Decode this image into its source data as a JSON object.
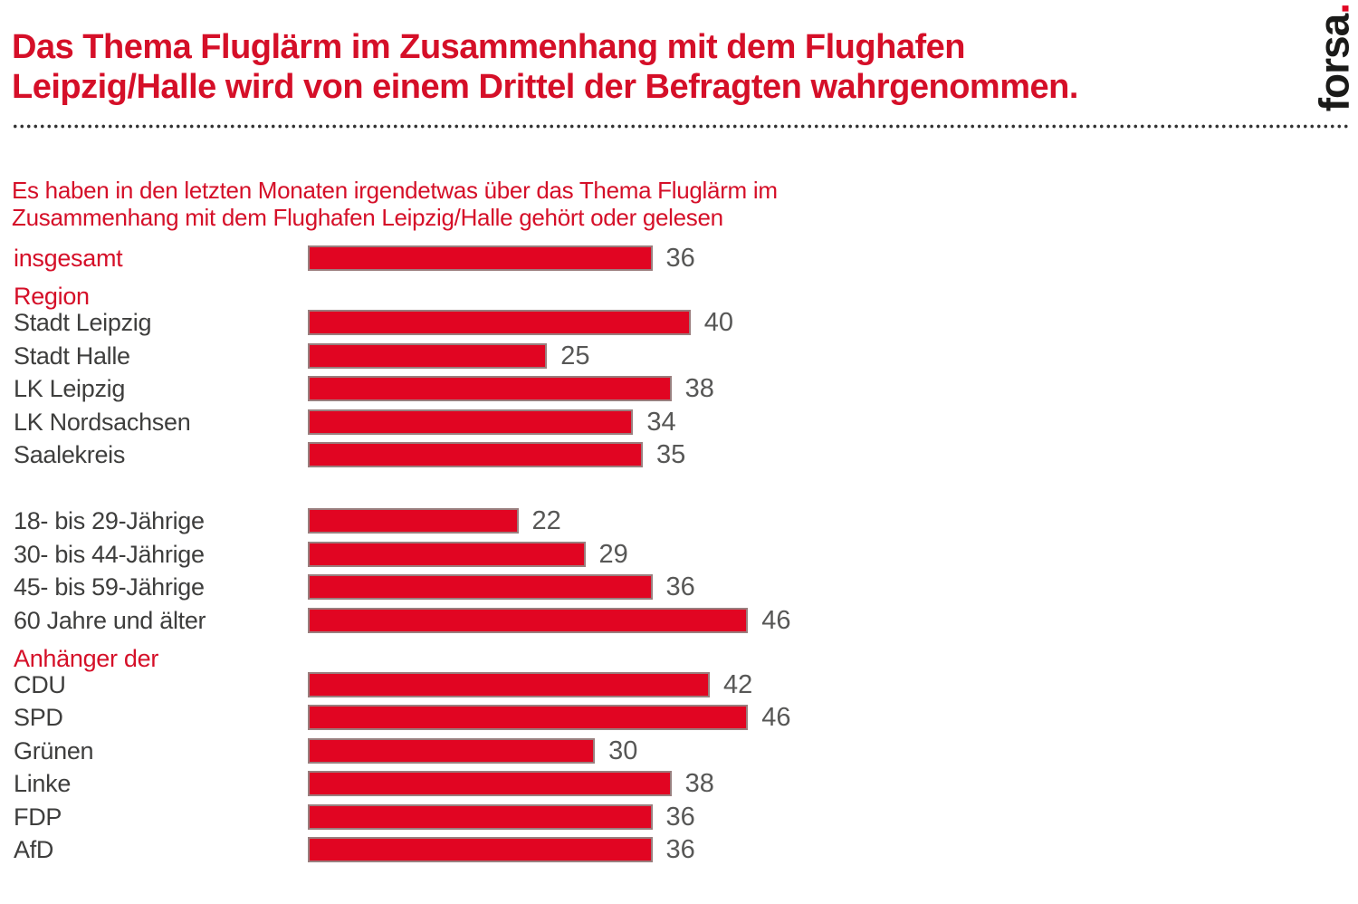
{
  "header": {
    "title_line1": "Das Thema Fluglärm im Zusammenhang mit dem Flughafen",
    "title_line2": "Leipzig/Halle wird von einem Drittel der Befragten wahrgenommen.",
    "logo_text": "forsa",
    "logo_dot": "."
  },
  "subtitle": {
    "line1": "Es haben in den letzten Monaten irgendetwas über das Thema Fluglärm im",
    "line2": "Zusammenhang mit dem Flughafen Leipzig/Halle gehört oder gelesen"
  },
  "colors": {
    "bar_red": "#e10522",
    "text_red": "#d50f28",
    "label_gray": "#3e3e3d",
    "value_gray": "#575756",
    "logo_black": "#1a1a18",
    "logo_dot_red": "#e10522"
  },
  "chart_data": {
    "type": "bar",
    "orientation": "horizontal",
    "value_unit": "percent",
    "xlim": [
      0,
      50
    ],
    "grid": false,
    "legend": false,
    "title": "Es haben in den letzten Monaten irgendetwas über das Thema Fluglärm im Zusammenhang mit dem Flughafen Leipzig/Halle gehört oder gelesen",
    "groups": [
      {
        "header": null,
        "rows": [
          {
            "label": "insgesamt",
            "value": 36,
            "emphasis": true
          }
        ]
      },
      {
        "header": "Region",
        "rows": [
          {
            "label": "Stadt Leipzig",
            "value": 40
          },
          {
            "label": "Stadt Halle",
            "value": 25
          },
          {
            "label": "LK Leipzig",
            "value": 38
          },
          {
            "label": "LK Nordsachsen",
            "value": 34
          },
          {
            "label": "Saalekreis",
            "value": 35
          }
        ]
      },
      {
        "header": "",
        "rows": [
          {
            "label": "18- bis 29-Jährige",
            "value": 22
          },
          {
            "label": "30- bis 44-Jährige",
            "value": 29
          },
          {
            "label": "45- bis 59-Jährige",
            "value": 36
          },
          {
            "label": "60 Jahre und älter",
            "value": 46
          }
        ]
      },
      {
        "header": "Anhänger der",
        "rows": [
          {
            "label": "CDU",
            "value": 42
          },
          {
            "label": "SPD",
            "value": 46
          },
          {
            "label": "Grünen",
            "value": 30
          },
          {
            "label": "Linke",
            "value": 38
          },
          {
            "label": "FDP",
            "value": 36
          },
          {
            "label": "AfD",
            "value": 36
          }
        ]
      }
    ]
  }
}
